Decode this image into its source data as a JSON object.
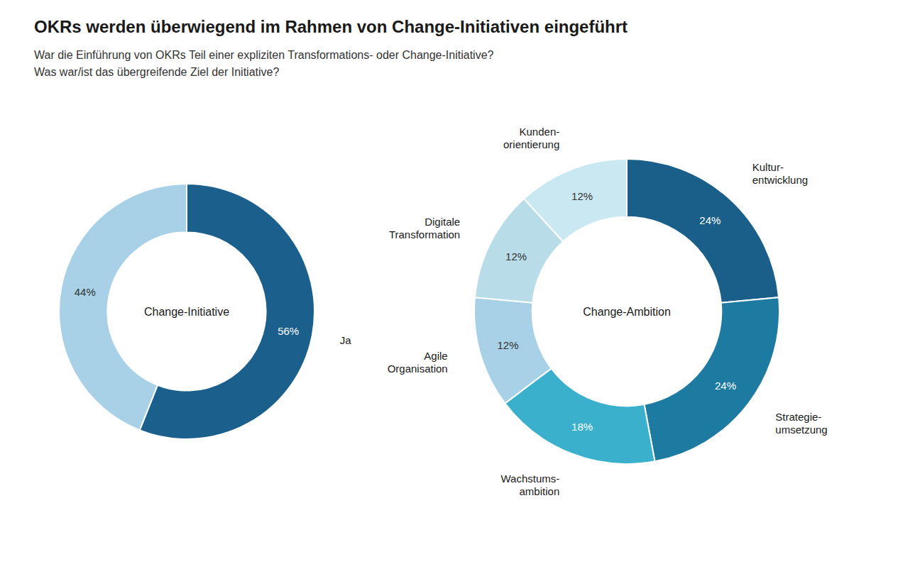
{
  "chart_data": [
    {
      "type": "pie",
      "title": "OKRs werden überwiegend im Rahmen von Change-Initiativen eingeführt",
      "subtitle": "War die Einführung von OKRs Teil einer expliziten Transformations- oder Change-Initiative?",
      "annotation": "Change-Initiative",
      "categories": [
        "Ja",
        null
      ],
      "values": [
        56,
        44
      ],
      "value_labels": [
        "56%",
        "44%"
      ],
      "data_labels": true,
      "colors": [
        "#1b5f8c",
        "#a8d1e7"
      ]
    },
    {
      "type": "pie",
      "subtitle": "Was war/ist das übergreifende Ziel der Initiative?",
      "annotation": "Change-Ambition",
      "categories": [
        "Kultur-\nentwicklung",
        "Strategie-\numsetzung",
        "Wachstums-\nambition",
        "Agile\nOrganisation",
        "Digitale\nTransformation",
        "Kunden-\norientierung"
      ],
      "values": [
        24,
        24,
        18,
        12,
        12,
        12
      ],
      "value_labels": [
        "24%",
        "24%",
        "18%",
        "12%",
        "12%",
        "12%"
      ],
      "data_labels": true,
      "colors": [
        "#1a5f8a",
        "#1d7aa0",
        "#3ab0cc",
        "#a8d1e7",
        "#b8dde8",
        "#c9e8f2"
      ]
    }
  ]
}
